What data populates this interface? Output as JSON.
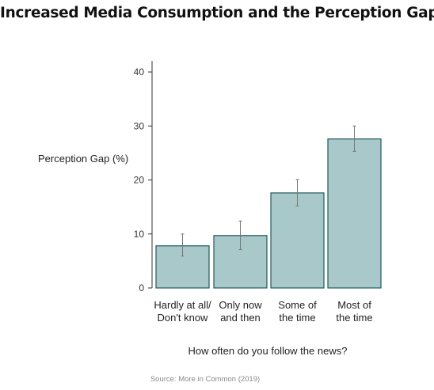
{
  "chart_data": {
    "type": "bar",
    "title": "Increased Media Consumption and the Perception Gap",
    "ylabel": "Perception Gap (%)",
    "xlabel": "How often do you follow the news?",
    "source": "Source: More in Common (2019)",
    "categories": [
      [
        "Hardly at all/",
        "Don't know"
      ],
      [
        "Only now",
        "and then"
      ],
      [
        "Some of",
        "the time"
      ],
      [
        "Most of",
        "the time"
      ]
    ],
    "values": [
      7.8,
      9.7,
      17.6,
      27.6
    ],
    "error_low": [
      5.9,
      7.1,
      15.2,
      25.3
    ],
    "error_high": [
      10.0,
      12.4,
      20.1,
      30.0
    ],
    "ylim": [
      0,
      40
    ],
    "yticks": [
      0,
      10,
      20,
      30,
      40
    ],
    "grid": false,
    "colors": {
      "bar_fill": "#a8c8ca",
      "bar_stroke": "#1f5a5e",
      "error_bar": "#777777",
      "axis": "#333333"
    }
  }
}
